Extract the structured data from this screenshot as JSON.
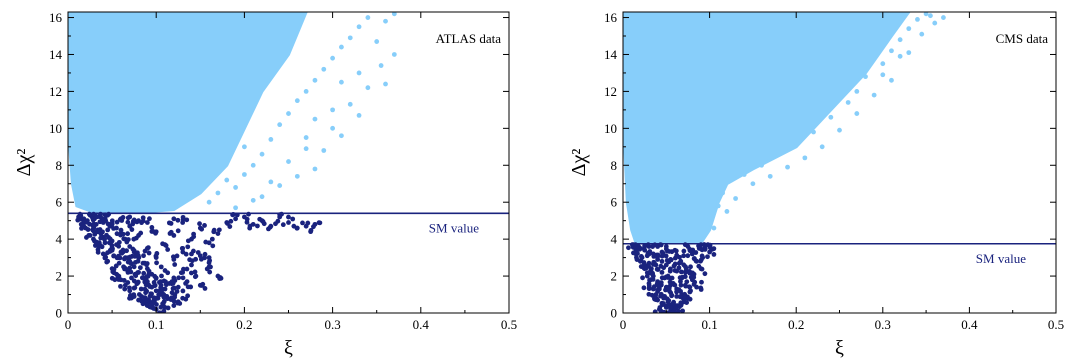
{
  "chart_data": [
    {
      "type": "scatter",
      "title": "",
      "annotation": "ATLAS data",
      "xlabel": "ξ",
      "ylabel": "Δχ²",
      "xlim": [
        0,
        0.5
      ],
      "ylim": [
        0,
        16.3
      ],
      "xticks": [
        "0",
        "0.1",
        "0.2",
        "0.3",
        "0.4",
        "0.5"
      ],
      "yticks": [
        "0",
        "2",
        "4",
        "6",
        "8",
        "10",
        "12",
        "14",
        "16"
      ],
      "grid": false,
      "sm_value": 5.4,
      "sm_label": "SM value",
      "colors": {
        "above": "#87cefa",
        "below": "#1a237e",
        "line": "#1a237e"
      },
      "above_region": {
        "description": "dense light-blue band above SM value",
        "boundary": [
          [
            0.002,
            16.3
          ],
          [
            0.002,
            9.0
          ],
          [
            0.005,
            7.0
          ],
          [
            0.01,
            5.8
          ],
          [
            0.03,
            5.45
          ],
          [
            0.08,
            5.45
          ],
          [
            0.12,
            5.6
          ],
          [
            0.15,
            6.5
          ],
          [
            0.18,
            8.0
          ],
          [
            0.2,
            10.0
          ],
          [
            0.22,
            12.0
          ],
          [
            0.25,
            14.0
          ],
          [
            0.27,
            16.3
          ]
        ]
      },
      "above_scatter_points": [
        [
          0.16,
          6.0
        ],
        [
          0.17,
          6.5
        ],
        [
          0.18,
          7.2
        ],
        [
          0.19,
          6.8
        ],
        [
          0.2,
          7.5
        ],
        [
          0.21,
          8.0
        ],
        [
          0.22,
          8.6
        ],
        [
          0.2,
          9.0
        ],
        [
          0.23,
          9.4
        ],
        [
          0.24,
          10.2
        ],
        [
          0.25,
          10.8
        ],
        [
          0.26,
          11.5
        ],
        [
          0.27,
          12.0
        ],
        [
          0.28,
          12.6
        ],
        [
          0.29,
          13.2
        ],
        [
          0.3,
          13.8
        ],
        [
          0.31,
          14.4
        ],
        [
          0.32,
          14.9
        ],
        [
          0.33,
          15.5
        ],
        [
          0.34,
          16.0
        ],
        [
          0.27,
          9.5
        ],
        [
          0.28,
          10.5
        ],
        [
          0.3,
          11.0
        ],
        [
          0.31,
          12.5
        ],
        [
          0.33,
          13.0
        ],
        [
          0.35,
          14.7
        ],
        [
          0.36,
          15.8
        ],
        [
          0.37,
          16.2
        ],
        [
          0.29,
          8.8
        ],
        [
          0.26,
          7.4
        ],
        [
          0.24,
          6.9
        ],
        [
          0.22,
          6.3
        ],
        [
          0.25,
          8.2
        ],
        [
          0.27,
          8.9
        ],
        [
          0.3,
          10.0
        ],
        [
          0.32,
          11.3
        ],
        [
          0.34,
          12.2
        ],
        [
          0.355,
          13.4
        ],
        [
          0.37,
          14.0
        ],
        [
          0.31,
          9.6
        ],
        [
          0.28,
          7.8
        ],
        [
          0.33,
          10.7
        ],
        [
          0.36,
          12.4
        ],
        [
          0.23,
          7.1
        ],
        [
          0.21,
          6.1
        ],
        [
          0.19,
          5.7
        ]
      ],
      "below_region_points": [
        [
          0.012,
          5.2
        ],
        [
          0.015,
          4.8
        ],
        [
          0.018,
          5.1
        ],
        [
          0.02,
          4.6
        ],
        [
          0.022,
          5.0
        ],
        [
          0.025,
          4.2
        ],
        [
          0.025,
          5.3
        ],
        [
          0.028,
          4.5
        ],
        [
          0.03,
          3.9
        ],
        [
          0.03,
          5.1
        ],
        [
          0.032,
          4.8
        ],
        [
          0.035,
          3.6
        ],
        [
          0.035,
          4.4
        ],
        [
          0.037,
          5.2
        ],
        [
          0.04,
          3.2
        ],
        [
          0.04,
          4.1
        ],
        [
          0.04,
          4.9
        ],
        [
          0.042,
          3.8
        ],
        [
          0.045,
          2.8
        ],
        [
          0.045,
          4.5
        ],
        [
          0.045,
          5.3
        ],
        [
          0.048,
          3.4
        ],
        [
          0.05,
          2.4
        ],
        [
          0.05,
          3.9
        ],
        [
          0.05,
          4.8
        ],
        [
          0.052,
          3.1
        ],
        [
          0.055,
          2.1
        ],
        [
          0.055,
          3.7
        ],
        [
          0.055,
          4.6
        ],
        [
          0.058,
          2.7
        ],
        [
          0.06,
          1.8
        ],
        [
          0.06,
          3.3
        ],
        [
          0.06,
          4.3
        ],
        [
          0.06,
          5.1
        ],
        [
          0.063,
          2.5
        ],
        [
          0.065,
          1.5
        ],
        [
          0.065,
          3.0
        ],
        [
          0.065,
          4.0
        ],
        [
          0.068,
          2.2
        ],
        [
          0.07,
          1.2
        ],
        [
          0.07,
          2.8
        ],
        [
          0.07,
          3.6
        ],
        [
          0.07,
          4.7
        ],
        [
          0.072,
          1.9
        ],
        [
          0.075,
          0.9
        ],
        [
          0.075,
          2.5
        ],
        [
          0.075,
          3.3
        ],
        [
          0.078,
          1.6
        ],
        [
          0.08,
          0.7
        ],
        [
          0.08,
          2.2
        ],
        [
          0.08,
          3.0
        ],
        [
          0.08,
          4.2
        ],
        [
          0.083,
          1.3
        ],
        [
          0.085,
          0.5
        ],
        [
          0.085,
          1.9
        ],
        [
          0.085,
          2.7
        ],
        [
          0.088,
          1.1
        ],
        [
          0.09,
          0.4
        ],
        [
          0.09,
          1.7
        ],
        [
          0.09,
          2.4
        ],
        [
          0.09,
          3.5
        ],
        [
          0.093,
          0.9
        ],
        [
          0.095,
          0.3
        ],
        [
          0.095,
          1.4
        ],
        [
          0.095,
          2.1
        ],
        [
          0.098,
          0.6
        ],
        [
          0.1,
          0.2
        ],
        [
          0.1,
          1.2
        ],
        [
          0.1,
          1.9
        ],
        [
          0.1,
          3.0
        ],
        [
          0.102,
          0.8
        ],
        [
          0.105,
          1.0
        ],
        [
          0.105,
          1.7
        ],
        [
          0.108,
          0.5
        ],
        [
          0.11,
          1.3
        ],
        [
          0.11,
          2.3
        ],
        [
          0.112,
          0.9
        ],
        [
          0.115,
          1.6
        ],
        [
          0.118,
          1.1
        ],
        [
          0.12,
          1.9
        ],
        [
          0.12,
          2.9
        ],
        [
          0.125,
          1.4
        ],
        [
          0.13,
          2.2
        ],
        [
          0.135,
          1.7
        ],
        [
          0.14,
          2.6
        ],
        [
          0.145,
          2.0
        ],
        [
          0.15,
          3.1
        ],
        [
          0.16,
          2.5
        ],
        [
          0.16,
          3.8
        ],
        [
          0.17,
          4.3
        ],
        [
          0.18,
          4.9
        ],
        [
          0.19,
          5.1
        ],
        [
          0.2,
          5.2
        ],
        [
          0.21,
          4.8
        ],
        [
          0.22,
          5.0
        ],
        [
          0.23,
          4.7
        ],
        [
          0.24,
          5.2
        ],
        [
          0.25,
          4.9
        ],
        [
          0.26,
          4.6
        ],
        [
          0.27,
          4.7
        ],
        [
          0.28,
          4.8
        ],
        [
          0.14,
          4.0
        ],
        [
          0.15,
          4.6
        ],
        [
          0.13,
          3.5
        ],
        [
          0.12,
          4.2
        ],
        [
          0.11,
          3.7
        ],
        [
          0.1,
          4.4
        ],
        [
          0.09,
          4.9
        ],
        [
          0.08,
          5.0
        ],
        [
          0.07,
          5.2
        ],
        [
          0.13,
          4.9
        ],
        [
          0.12,
          5.1
        ],
        [
          0.17,
          2.0
        ],
        [
          0.15,
          1.5
        ],
        [
          0.13,
          0.8
        ],
        [
          0.12,
          0.4
        ],
        [
          0.14,
          3.2
        ],
        [
          0.16,
          3.0
        ],
        [
          0.11,
          0.3
        ]
      ]
    },
    {
      "type": "scatter",
      "title": "",
      "annotation": "CMS data",
      "xlabel": "ξ",
      "ylabel": "Δχ²",
      "xlim": [
        0,
        0.5
      ],
      "ylim": [
        0,
        16.3
      ],
      "xticks": [
        "0",
        "0.1",
        "0.2",
        "0.3",
        "0.4",
        "0.5"
      ],
      "yticks": [
        "0",
        "2",
        "4",
        "6",
        "8",
        "10",
        "12",
        "14",
        "16"
      ],
      "grid": false,
      "sm_value": 3.75,
      "sm_label": "SM value",
      "colors": {
        "above": "#87cefa",
        "below": "#1a237e",
        "line": "#1a237e"
      },
      "above_region": {
        "description": "dense light-blue band above SM value",
        "boundary": [
          [
            0.002,
            16.3
          ],
          [
            0.002,
            9.0
          ],
          [
            0.005,
            6.0
          ],
          [
            0.01,
            4.5
          ],
          [
            0.015,
            3.8
          ],
          [
            0.09,
            3.8
          ],
          [
            0.1,
            4.5
          ],
          [
            0.11,
            6.0
          ],
          [
            0.12,
            7.0
          ],
          [
            0.15,
            7.8
          ],
          [
            0.2,
            9.0
          ],
          [
            0.24,
            11.0
          ],
          [
            0.28,
            13.0
          ],
          [
            0.31,
            15.0
          ],
          [
            0.33,
            16.3
          ]
        ]
      },
      "above_scatter_points": [
        [
          0.1,
          5.2
        ],
        [
          0.11,
          5.8
        ],
        [
          0.105,
          4.6
        ],
        [
          0.115,
          6.5
        ],
        [
          0.125,
          7.2
        ],
        [
          0.14,
          7.5
        ],
        [
          0.16,
          8.0
        ],
        [
          0.18,
          8.6
        ],
        [
          0.2,
          9.2
        ],
        [
          0.22,
          9.8
        ],
        [
          0.24,
          10.6
        ],
        [
          0.26,
          11.4
        ],
        [
          0.27,
          12.0
        ],
        [
          0.28,
          12.8
        ],
        [
          0.3,
          13.5
        ],
        [
          0.31,
          14.2
        ],
        [
          0.32,
          14.8
        ],
        [
          0.33,
          15.4
        ],
        [
          0.34,
          15.9
        ],
        [
          0.35,
          16.2
        ],
        [
          0.36,
          15.7
        ],
        [
          0.37,
          16.0
        ],
        [
          0.345,
          15.1
        ],
        [
          0.33,
          14.1
        ],
        [
          0.31,
          12.6
        ],
        [
          0.29,
          11.8
        ],
        [
          0.27,
          10.8
        ],
        [
          0.25,
          9.9
        ],
        [
          0.23,
          9.0
        ],
        [
          0.21,
          8.4
        ],
        [
          0.19,
          7.9
        ],
        [
          0.17,
          7.4
        ],
        [
          0.15,
          7.0
        ],
        [
          0.13,
          6.2
        ],
        [
          0.12,
          5.5
        ],
        [
          0.355,
          16.1
        ],
        [
          0.3,
          12.9
        ],
        [
          0.32,
          13.9
        ]
      ],
      "below_region_points": [
        [
          0.012,
          3.7
        ],
        [
          0.015,
          3.2
        ],
        [
          0.017,
          3.6
        ],
        [
          0.02,
          2.8
        ],
        [
          0.02,
          3.5
        ],
        [
          0.022,
          3.0
        ],
        [
          0.025,
          2.4
        ],
        [
          0.025,
          3.4
        ],
        [
          0.028,
          2.0
        ],
        [
          0.028,
          3.1
        ],
        [
          0.03,
          1.6
        ],
        [
          0.03,
          2.7
        ],
        [
          0.03,
          3.6
        ],
        [
          0.032,
          2.3
        ],
        [
          0.035,
          1.3
        ],
        [
          0.035,
          2.0
        ],
        [
          0.035,
          3.2
        ],
        [
          0.038,
          1.0
        ],
        [
          0.038,
          2.6
        ],
        [
          0.04,
          0.7
        ],
        [
          0.04,
          1.7
        ],
        [
          0.04,
          2.9
        ],
        [
          0.04,
          3.6
        ],
        [
          0.042,
          1.3
        ],
        [
          0.045,
          0.5
        ],
        [
          0.045,
          2.2
        ],
        [
          0.045,
          3.3
        ],
        [
          0.048,
          0.9
        ],
        [
          0.048,
          1.9
        ],
        [
          0.05,
          0.3
        ],
        [
          0.05,
          1.4
        ],
        [
          0.05,
          2.6
        ],
        [
          0.05,
          3.6
        ],
        [
          0.052,
          0.6
        ],
        [
          0.052,
          2.0
        ],
        [
          0.055,
          0.2
        ],
        [
          0.055,
          1.1
        ],
        [
          0.055,
          2.9
        ],
        [
          0.058,
          0.5
        ],
        [
          0.058,
          1.6
        ],
        [
          0.06,
          0.3
        ],
        [
          0.06,
          2.3
        ],
        [
          0.06,
          3.4
        ],
        [
          0.062,
          0.9
        ],
        [
          0.062,
          1.3
        ],
        [
          0.065,
          0.4
        ],
        [
          0.065,
          2.7
        ],
        [
          0.068,
          1.0
        ],
        [
          0.068,
          1.9
        ],
        [
          0.07,
          0.6
        ],
        [
          0.07,
          3.1
        ],
        [
          0.072,
          1.5
        ],
        [
          0.072,
          2.2
        ],
        [
          0.075,
          0.8
        ],
        [
          0.075,
          3.6
        ],
        [
          0.078,
          1.2
        ],
        [
          0.078,
          2.5
        ],
        [
          0.08,
          1.8
        ],
        [
          0.08,
          3.2
        ],
        [
          0.082,
          2.1
        ],
        [
          0.085,
          1.4
        ],
        [
          0.085,
          2.8
        ],
        [
          0.088,
          3.5
        ],
        [
          0.09,
          2.4
        ],
        [
          0.09,
          3.7
        ],
        [
          0.092,
          3.0
        ],
        [
          0.095,
          3.5
        ],
        [
          0.098,
          3.7
        ],
        [
          0.1,
          3.3
        ],
        [
          0.042,
          0.2
        ],
        [
          0.064,
          0.1
        ],
        [
          0.058,
          0.0
        ]
      ]
    }
  ]
}
